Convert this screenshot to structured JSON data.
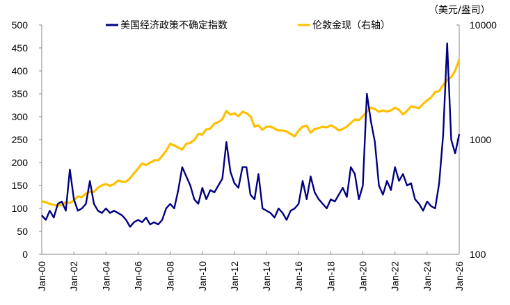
{
  "chart_data": {
    "type": "line",
    "title": "",
    "unit_right": "（美元/盎司）",
    "legend_position": "top",
    "grid": false,
    "x_tick_labels": [
      "Jan-00",
      "Jan-02",
      "Jan-04",
      "Jan-06",
      "Jan-08",
      "Jan-10",
      "Jan-12",
      "Jan-14",
      "Jan-16",
      "Jan-18",
      "Jan-20",
      "Jan-22",
      "Jan-24",
      "Jan-26"
    ],
    "left_axis": {
      "range": [
        0,
        500
      ],
      "ticks": [
        "0",
        "50",
        "100",
        "150",
        "200",
        "250",
        "300",
        "350",
        "400",
        "450",
        "500"
      ]
    },
    "right_axis": {
      "scale": "log",
      "range": [
        100,
        10000
      ],
      "ticks": [
        "100",
        "1000",
        "10000"
      ]
    },
    "x_range": [
      "2000-01",
      "2026-01"
    ],
    "x": [
      "2000-01",
      "2000-04",
      "2000-07",
      "2000-10",
      "2001-01",
      "2001-04",
      "2001-07",
      "2001-10",
      "2002-01",
      "2002-04",
      "2002-07",
      "2002-10",
      "2003-01",
      "2003-04",
      "2003-07",
      "2003-10",
      "2004-01",
      "2004-04",
      "2004-07",
      "2004-10",
      "2005-01",
      "2005-04",
      "2005-07",
      "2005-10",
      "2006-01",
      "2006-04",
      "2006-07",
      "2006-10",
      "2007-01",
      "2007-04",
      "2007-07",
      "2007-10",
      "2008-01",
      "2008-04",
      "2008-07",
      "2008-10",
      "2009-01",
      "2009-04",
      "2009-07",
      "2009-10",
      "2010-01",
      "2010-04",
      "2010-07",
      "2010-10",
      "2011-01",
      "2011-04",
      "2011-07",
      "2011-10",
      "2012-01",
      "2012-04",
      "2012-07",
      "2012-10",
      "2013-01",
      "2013-04",
      "2013-07",
      "2013-10",
      "2014-01",
      "2014-04",
      "2014-07",
      "2014-10",
      "2015-01",
      "2015-04",
      "2015-07",
      "2015-10",
      "2016-01",
      "2016-04",
      "2016-07",
      "2016-10",
      "2017-01",
      "2017-04",
      "2017-07",
      "2017-10",
      "2018-01",
      "2018-04",
      "2018-07",
      "2018-10",
      "2019-01",
      "2019-04",
      "2019-07",
      "2019-10",
      "2020-01",
      "2020-04",
      "2020-07",
      "2020-10",
      "2021-01",
      "2021-04",
      "2021-07",
      "2021-10",
      "2022-01",
      "2022-04",
      "2022-07",
      "2022-10",
      "2023-01",
      "2023-04",
      "2023-07",
      "2023-10",
      "2024-01",
      "2024-04",
      "2024-07",
      "2024-10",
      "2025-01",
      "2025-04",
      "2025-07",
      "2025-10",
      "2026-01"
    ],
    "series": [
      {
        "name": "美国经济政策不确定指数",
        "axis": "left",
        "color": "#000080",
        "values": [
          85,
          75,
          95,
          80,
          110,
          115,
          95,
          185,
          120,
          95,
          100,
          110,
          160,
          110,
          95,
          90,
          100,
          90,
          95,
          90,
          85,
          75,
          60,
          70,
          75,
          70,
          80,
          65,
          70,
          65,
          75,
          100,
          110,
          100,
          140,
          190,
          170,
          150,
          120,
          110,
          145,
          120,
          140,
          135,
          150,
          165,
          245,
          180,
          155,
          145,
          190,
          190,
          130,
          120,
          175,
          100,
          95,
          90,
          80,
          100,
          90,
          75,
          95,
          100,
          110,
          160,
          120,
          170,
          135,
          120,
          110,
          100,
          120,
          115,
          130,
          145,
          125,
          190,
          175,
          120,
          150,
          350,
          290,
          245,
          150,
          130,
          160,
          140,
          190,
          160,
          175,
          150,
          155,
          120,
          110,
          95,
          115,
          105,
          100,
          155,
          260,
          460,
          250,
          220,
          262
        ]
      },
      {
        "name": "伦敦金现（右轴）",
        "axis": "right",
        "color": "#FFC000",
        "values": [
          290,
          285,
          275,
          270,
          265,
          270,
          285,
          280,
          295,
          320,
          315,
          340,
          350,
          350,
          380,
          400,
          410,
          395,
          410,
          440,
          430,
          430,
          460,
          510,
          560,
          620,
          600,
          630,
          660,
          660,
          720,
          800,
          920,
          890,
          850,
          820,
          920,
          940,
          990,
          1120,
          1110,
          1230,
          1250,
          1380,
          1420,
          1510,
          1780,
          1650,
          1700,
          1600,
          1750,
          1700,
          1600,
          1300,
          1330,
          1220,
          1300,
          1300,
          1250,
          1200,
          1200,
          1180,
          1120,
          1070,
          1200,
          1300,
          1320,
          1150,
          1240,
          1260,
          1300,
          1280,
          1330,
          1280,
          1200,
          1240,
          1300,
          1400,
          1500,
          1480,
          1600,
          1750,
          1900,
          1850,
          1750,
          1800,
          1760,
          1800,
          1900,
          1820,
          1660,
          1780,
          1950,
          1920,
          1880,
          2050,
          2200,
          2330,
          2600,
          2650,
          3000,
          3300,
          3500,
          4000,
          5000
        ]
      }
    ]
  }
}
